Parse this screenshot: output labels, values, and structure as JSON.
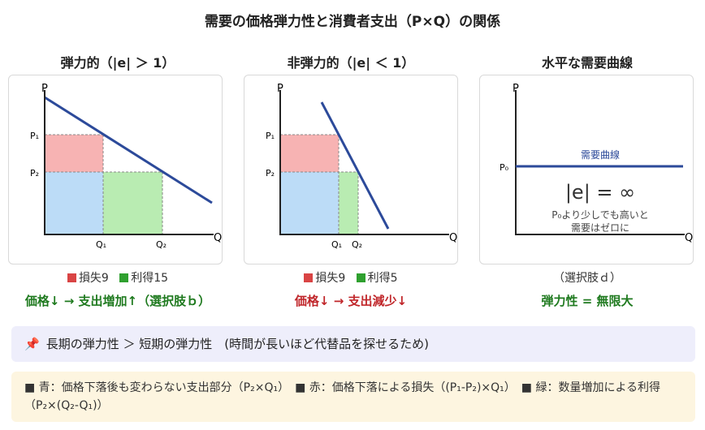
{
  "title": "需要の価格弾力性と消費者支出（P×Q）の関係",
  "panels": [
    {
      "title": "弾力的（|e| ＞ 1）",
      "axis_p": "P",
      "axis_q": "Q",
      "p1": "P₁",
      "p2": "P₂",
      "q1": "Q₁",
      "q2": "Q₂",
      "legend_loss": "損失9",
      "legend_gain": "利得15",
      "conclusion": "価格↓ → 支出増加↑（選択肢ｂ）"
    },
    {
      "title": "非弾力的（|e| ＜ 1）",
      "axis_p": "P",
      "axis_q": "Q",
      "p1": "P₁",
      "p2": "P₂",
      "q1": "Q₁",
      "q2": "Q₂",
      "legend_loss": "損失9",
      "legend_gain": "利得5",
      "conclusion": "価格↓ → 支出減少↓"
    },
    {
      "title": "水平な需要曲線",
      "axis_p": "P",
      "axis_q": "Q",
      "p0": "P₀",
      "curve_label": "需要曲線",
      "elasticity": "|e| = ∞",
      "caption_line1": "P₀より少しでも高いと",
      "caption_line2": "需要はゼロに",
      "legend": "（選択肢ｄ）",
      "conclusion": "弾力性 = 無限大"
    }
  ],
  "note_main": "長期の弾力性 ＞ 短期の弾力性　(時間が長いほど代替品を探せるため)",
  "note_legend": "■ 青：価格下落後も変わらない支出部分（P₂×Q₁）　■ 赤：価格下落による損失（(P₁-P₂)×Q₁）　■ 緑：数量増加による利得（P₂×(Q₂-Q₁)）",
  "colors": {
    "loss": "#d94444",
    "gain": "#2fa02f",
    "blue_area": "#bcdcf7",
    "red_area": "#f7b3b3",
    "green_area": "#b9ecb2",
    "curve": "#2c4a9a"
  }
}
